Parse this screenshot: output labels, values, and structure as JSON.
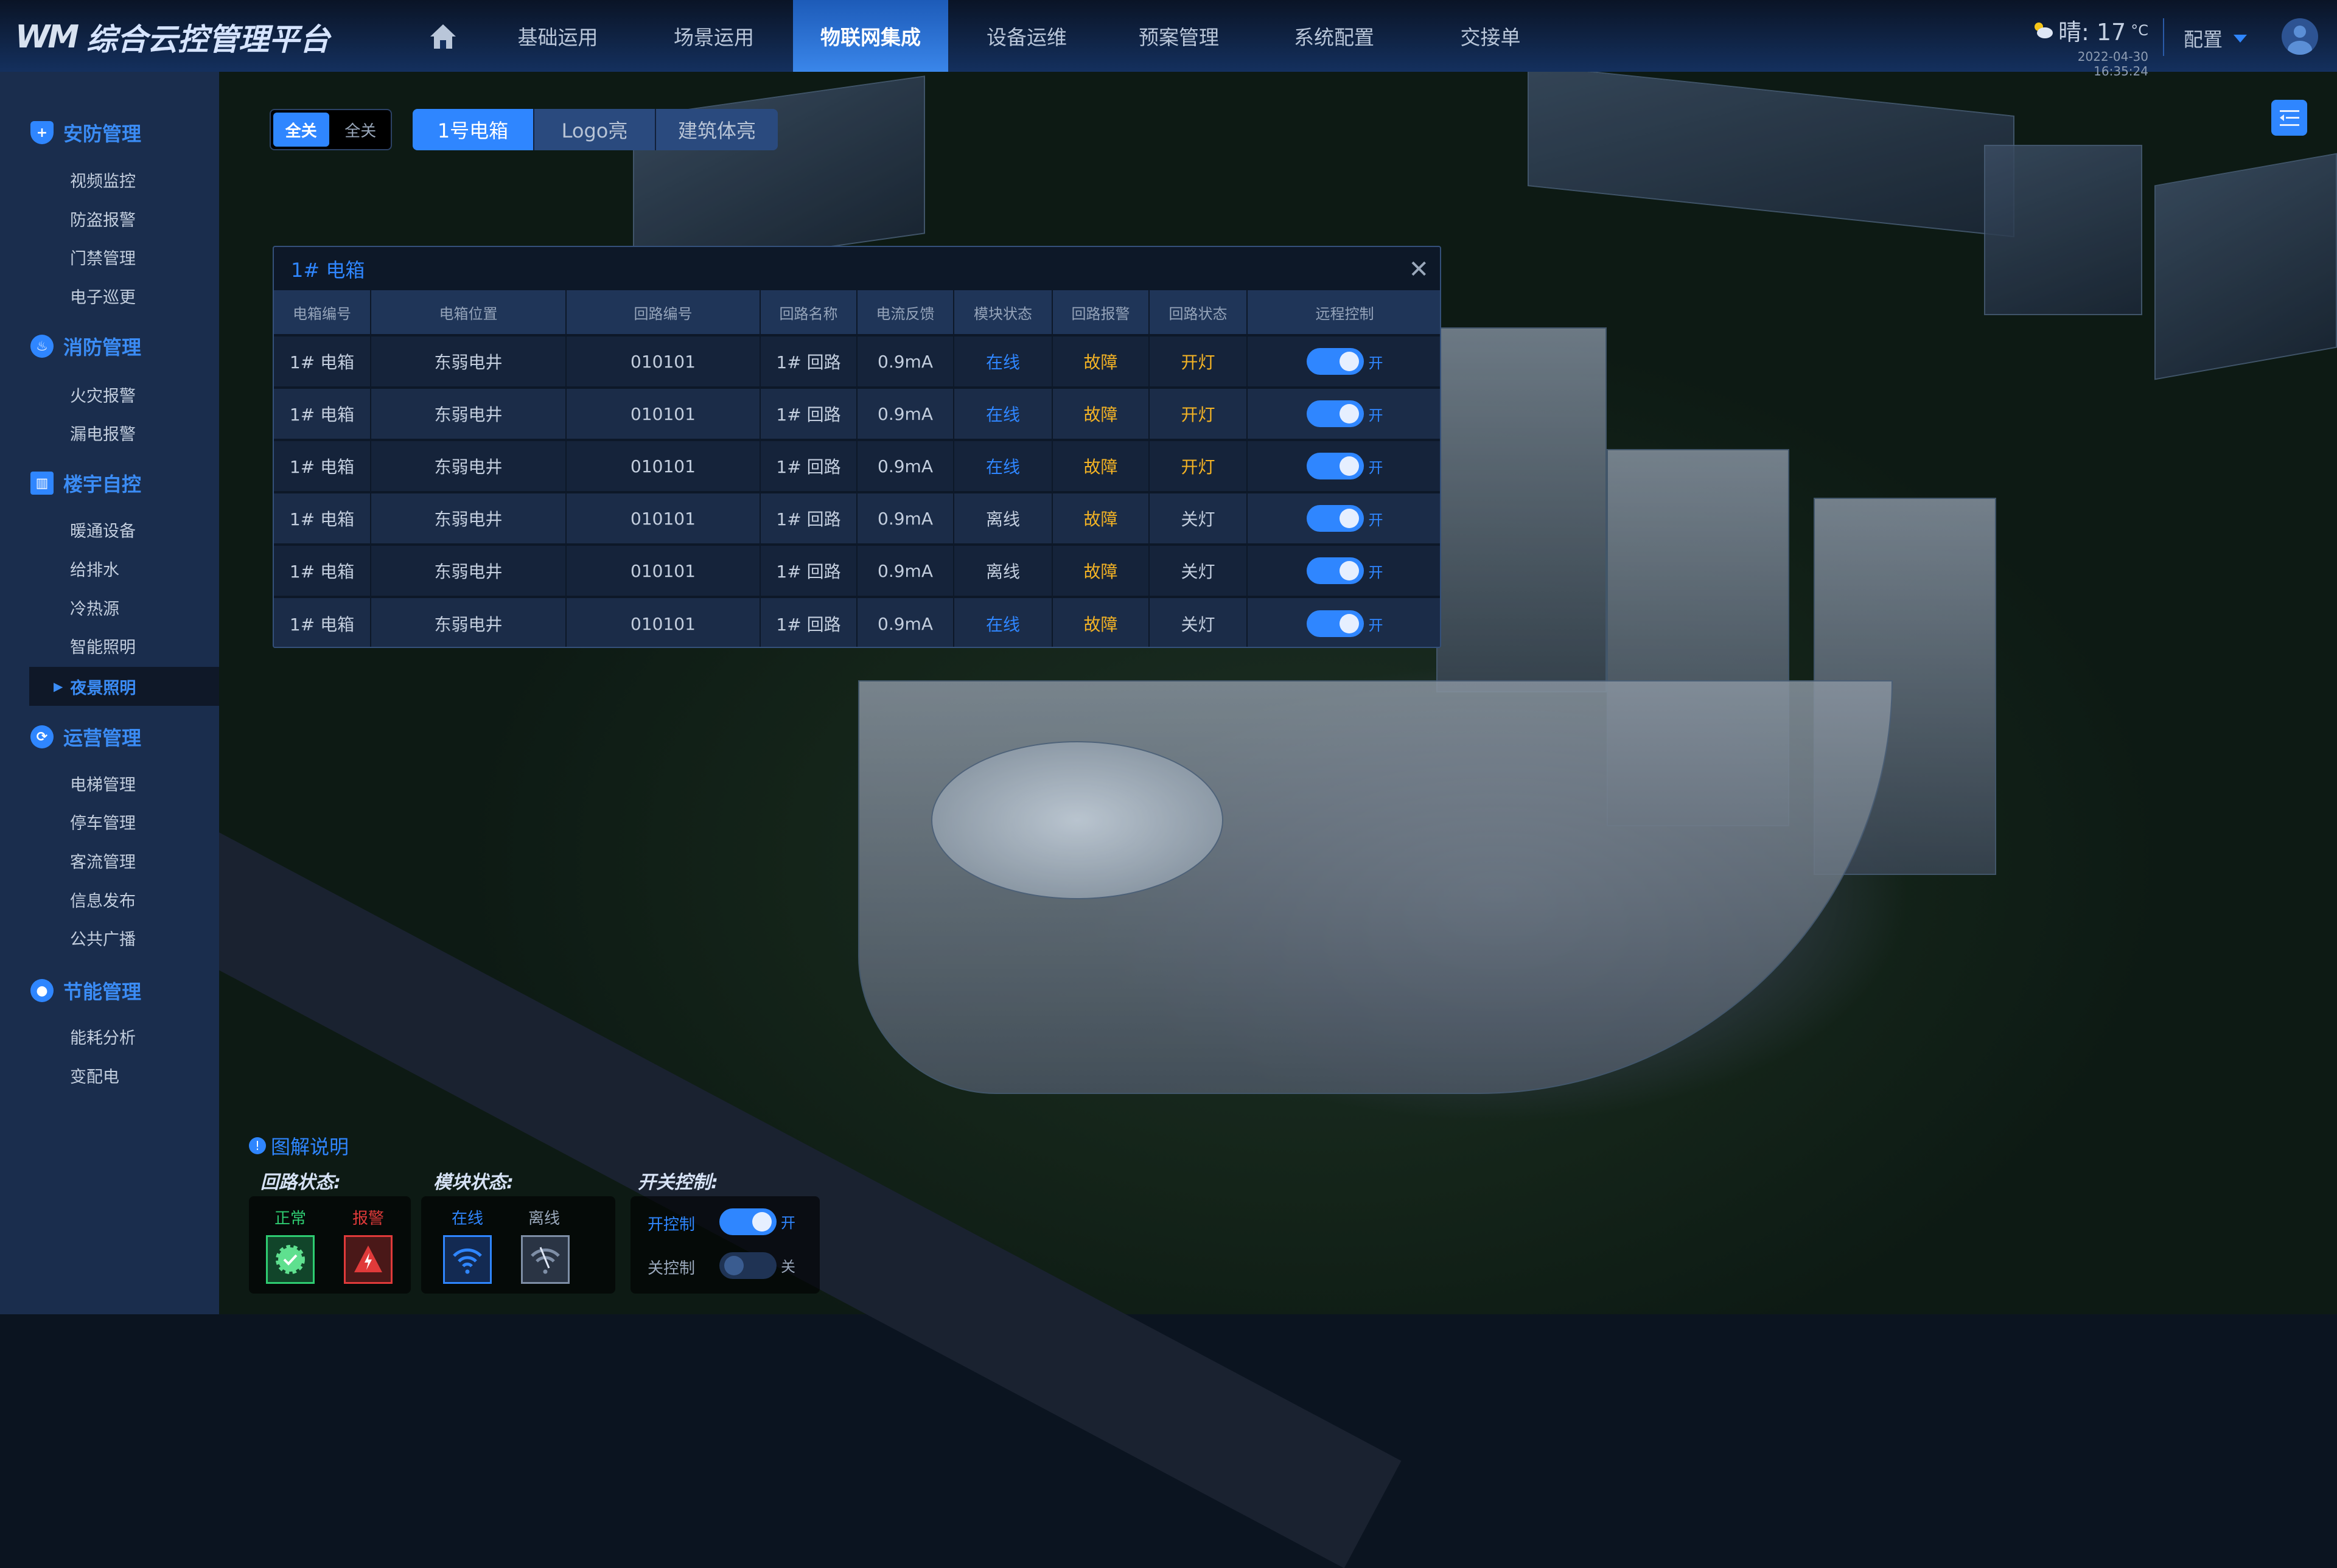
{
  "header": {
    "logo_mark": "WM",
    "title": "综合云控管理平台",
    "nav": [
      {
        "label": "基础运用"
      },
      {
        "label": "场景运用"
      },
      {
        "label": "物联网集成",
        "active": true
      },
      {
        "label": "设备运维"
      },
      {
        "label": "预案管理"
      },
      {
        "label": "系统配置"
      },
      {
        "label": "交接单"
      }
    ],
    "weather": {
      "text": "晴: 17",
      "unit": "°C",
      "datetime": "2022-04-30  16:35:24"
    },
    "config_label": "配置"
  },
  "sidebar": {
    "groups": [
      {
        "label": "安防管理",
        "icon": "shield-icon",
        "items": [
          "视频监控",
          "防盗报警",
          "门禁管理",
          "电子巡更"
        ]
      },
      {
        "label": "消防管理",
        "icon": "fire-icon",
        "items": [
          "火灾报警",
          "漏电报警"
        ]
      },
      {
        "label": "楼宇自控",
        "icon": "building-icon",
        "items": [
          "暖通设备",
          "给排水",
          "冷热源",
          "智能照明",
          "夜景照明"
        ],
        "active_item": "夜景照明"
      },
      {
        "label": "运营管理",
        "icon": "share-icon",
        "items": [
          "电梯管理",
          "停车管理",
          "客流管理",
          "信息发布",
          "公共广播"
        ]
      },
      {
        "label": "节能管理",
        "icon": "bulb-icon",
        "items": [
          "能耗分析",
          "变配电"
        ]
      }
    ]
  },
  "toolbar": {
    "all_off_on": "全关",
    "all_off": "全关",
    "tabs": [
      "1号电箱",
      "Logo亮",
      "建筑体亮"
    ],
    "active_tab": 0
  },
  "panel": {
    "title": "1# 电箱",
    "columns": [
      "电箱编号",
      "电箱位置",
      "回路编号",
      "回路名称",
      "电流反馈",
      "模块状态",
      "回路报警",
      "回路状态",
      "远程控制"
    ],
    "rows": [
      [
        "1# 电箱",
        "东弱电井",
        "010101",
        "1# 回路",
        "0.9mA",
        "在线",
        "故障",
        "开灯",
        "开"
      ],
      [
        "1# 电箱",
        "东弱电井",
        "010101",
        "1# 回路",
        "0.9mA",
        "在线",
        "故障",
        "开灯",
        "开"
      ],
      [
        "1# 电箱",
        "东弱电井",
        "010101",
        "1# 回路",
        "0.9mA",
        "在线",
        "故障",
        "开灯",
        "开"
      ],
      [
        "1# 电箱",
        "东弱电井",
        "010101",
        "1# 回路",
        "0.9mA",
        "离线",
        "故障",
        "关灯",
        "开"
      ],
      [
        "1# 电箱",
        "东弱电井",
        "010101",
        "1# 回路",
        "0.9mA",
        "离线",
        "故障",
        "关灯",
        "开"
      ],
      [
        "1# 电箱",
        "东弱电井",
        "010101",
        "1# 回路",
        "0.9mA",
        "在线",
        "故障",
        "关灯",
        "开"
      ]
    ]
  },
  "legend": {
    "title": "图解说明",
    "circuit_title": "回路状态:",
    "normal": "正常",
    "alarm": "报警",
    "module_title": "模块状态:",
    "online": "在线",
    "offline": "离线",
    "switch_title": "开关控制:",
    "on_control": "开控制",
    "on": "开",
    "off_control": "关控制",
    "off": "关"
  },
  "colors": {
    "accent": "#2f86ff",
    "warning": "#f4b324",
    "normal": "#2ecc71",
    "alarm": "#e03a3a"
  }
}
